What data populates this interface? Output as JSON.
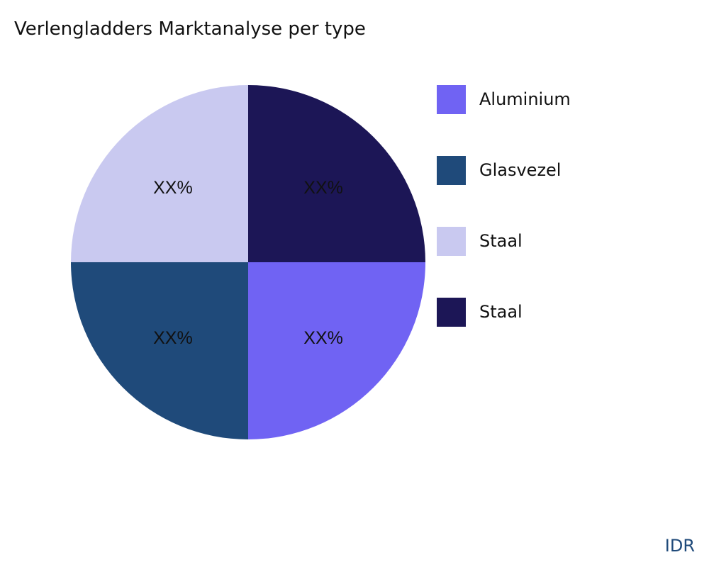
{
  "chart_data": {
    "type": "pie",
    "title": "Verlengladders Marktanalyse per type",
    "slices": [
      {
        "label": "Aluminium",
        "value": 25,
        "data_label": "XX%",
        "color": "#7063F3"
      },
      {
        "label": "Glasvezel",
        "value": 25,
        "data_label": "XX%",
        "color": "#1F4A7A"
      },
      {
        "label": "Staal",
        "value": 25,
        "data_label": "XX%",
        "color": "#C9C9F0"
      },
      {
        "label": "Staal",
        "value": 25,
        "data_label": "XX%",
        "color": "#1C1656"
      }
    ],
    "legend_position": "right"
  },
  "brand": "IDR"
}
